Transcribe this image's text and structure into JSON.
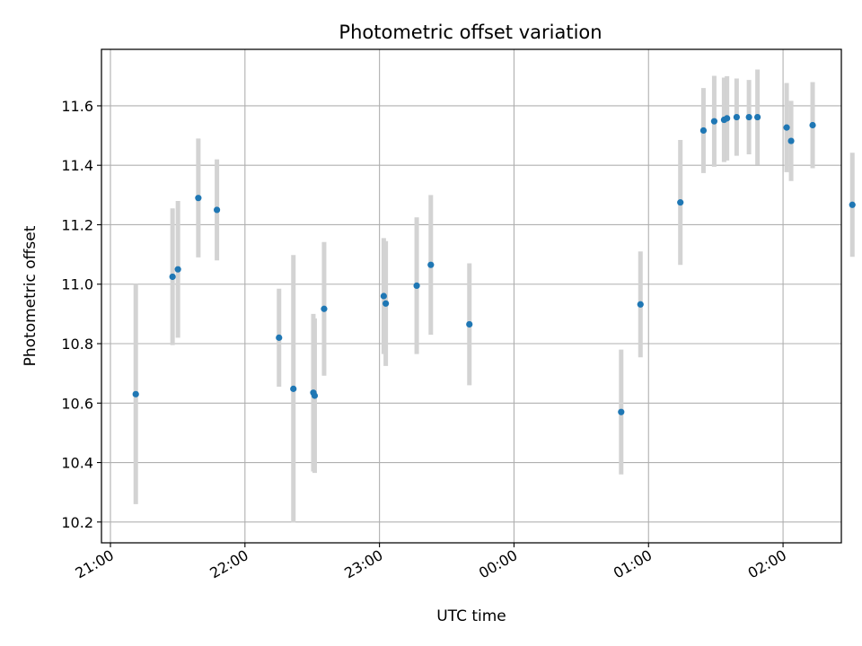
{
  "chart_data": {
    "type": "scatter",
    "title": "Photometric offset variation",
    "xlabel": "UTC time",
    "ylabel": "Photometric offset",
    "grid": true,
    "legend": "none",
    "colors": {
      "marker": "#1f77b4",
      "errorbar": "#d3d3d3",
      "grid": "#b0b0b0"
    },
    "xlim_minutes_after_2100": [
      -4,
      326
    ],
    "ylim": [
      10.13,
      11.79
    ],
    "x_ticks": [
      {
        "min": 0,
        "label": "21:00"
      },
      {
        "min": 60,
        "label": "22:00"
      },
      {
        "min": 120,
        "label": "23:00"
      },
      {
        "min": 180,
        "label": "00:00"
      },
      {
        "min": 240,
        "label": "01:00"
      },
      {
        "min": 300,
        "label": "02:00"
      }
    ],
    "y_ticks": [
      {
        "value": 10.2,
        "label": "10.2"
      },
      {
        "value": 10.4,
        "label": "10.4"
      },
      {
        "value": 10.6,
        "label": "10.6"
      },
      {
        "value": 10.8,
        "label": "10.8"
      },
      {
        "value": 11.0,
        "label": "11.0"
      },
      {
        "value": 11.2,
        "label": "11.2"
      },
      {
        "value": 11.4,
        "label": "11.4"
      },
      {
        "value": 11.6,
        "label": "11.6"
      }
    ],
    "points": [
      {
        "t": 11.3,
        "y": 10.63,
        "yerr": 0.37
      },
      {
        "t": 27.7,
        "y": 11.025,
        "yerr": 0.23
      },
      {
        "t": 30.1,
        "y": 11.05,
        "yerr": 0.23
      },
      {
        "t": 39.2,
        "y": 11.29,
        "yerr": 0.2
      },
      {
        "t": 47.5,
        "y": 11.25,
        "yerr": 0.17
      },
      {
        "t": 75.2,
        "y": 10.82,
        "yerr": 0.165
      },
      {
        "t": 81.6,
        "y": 10.648,
        "yerr": 0.45
      },
      {
        "t": 90.5,
        "y": 10.635,
        "yerr": 0.265
      },
      {
        "t": 91.1,
        "y": 10.625,
        "yerr": 0.26
      },
      {
        "t": 95.3,
        "y": 10.917,
        "yerr": 0.225
      },
      {
        "t": 121.9,
        "y": 10.96,
        "yerr": 0.195
      },
      {
        "t": 122.8,
        "y": 10.935,
        "yerr": 0.21
      },
      {
        "t": 136.6,
        "y": 10.995,
        "yerr": 0.23
      },
      {
        "t": 142.9,
        "y": 11.065,
        "yerr": 0.235
      },
      {
        "t": 160.1,
        "y": 10.865,
        "yerr": 0.205
      },
      {
        "t": 227.8,
        "y": 10.57,
        "yerr": 0.21
      },
      {
        "t": 236.4,
        "y": 10.932,
        "yerr": 0.178
      },
      {
        "t": 254.2,
        "y": 11.275,
        "yerr": 0.21
      },
      {
        "t": 264.5,
        "y": 11.517,
        "yerr": 0.143
      },
      {
        "t": 269.3,
        "y": 11.548,
        "yerr": 0.153
      },
      {
        "t": 273.7,
        "y": 11.553,
        "yerr": 0.142
      },
      {
        "t": 275.0,
        "y": 11.558,
        "yerr": 0.142
      },
      {
        "t": 279.3,
        "y": 11.562,
        "yerr": 0.13
      },
      {
        "t": 284.8,
        "y": 11.562,
        "yerr": 0.125
      },
      {
        "t": 288.6,
        "y": 11.562,
        "yerr": 0.16
      },
      {
        "t": 301.6,
        "y": 11.527,
        "yerr": 0.15
      },
      {
        "t": 303.6,
        "y": 11.482,
        "yerr": 0.135
      },
      {
        "t": 313.2,
        "y": 11.535,
        "yerr": 0.145
      },
      {
        "t": 330.9,
        "y": 11.267,
        "yerr": 0.175
      }
    ]
  }
}
